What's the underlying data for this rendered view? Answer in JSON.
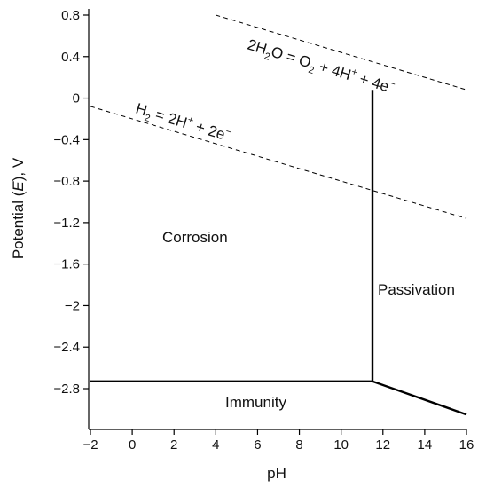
{
  "chart_data": {
    "type": "line",
    "title": "",
    "xlabel": "pH",
    "ylabel_parts": [
      "Potential (",
      "E",
      "), V"
    ],
    "xlim": [
      -2,
      16
    ],
    "ylim": [
      -3.1,
      0.8
    ],
    "x_ticks": [
      -2,
      0,
      2,
      4,
      6,
      8,
      10,
      12,
      14,
      16
    ],
    "x_tick_labels": [
      "−2",
      "0",
      "2",
      "4",
      "6",
      "8",
      "10",
      "12",
      "14",
      "16"
    ],
    "y_ticks": [
      0.8,
      0.4,
      0,
      -0.4,
      -0.8,
      -1.2,
      -1.6,
      -2,
      -2.4,
      -2.8
    ],
    "y_tick_labels": [
      "0.8",
      "0.4",
      "0",
      "−0.4",
      "−0.8",
      "−1.2",
      "−1.6",
      "−2",
      "−2.4",
      "−2.8"
    ],
    "grid": false,
    "series": [
      {
        "name": "",
        "style": "dashed",
        "points": [
          [
            4,
            0.8
          ],
          [
            16,
            0.08
          ]
        ]
      },
      {
        "name": "",
        "style": "dashed",
        "points": [
          [
            -2,
            -0.08
          ],
          [
            16,
            -1.16
          ]
        ]
      },
      {
        "name": "",
        "style": "solid",
        "points": [
          [
            11.5,
            0.08
          ],
          [
            11.5,
            -2.73
          ]
        ]
      },
      {
        "name": "",
        "style": "solid",
        "points": [
          [
            -2,
            -2.73
          ],
          [
            11.5,
            -2.73
          ],
          [
            16,
            -3.05
          ]
        ]
      }
    ],
    "annotations": {
      "corrosion": "Corrosion",
      "passivation": "Passivation",
      "immunity": "Immunity",
      "o2_equation": [
        "2H",
        "2",
        "O = O",
        "2",
        " + 4H",
        "+",
        " + 4e",
        "−"
      ],
      "h2_equation": [
        "H",
        "2",
        " =  2H",
        "+",
        " + 2e",
        "−"
      ]
    }
  }
}
